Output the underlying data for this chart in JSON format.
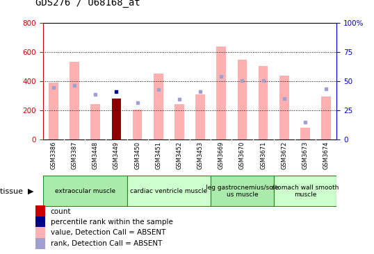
{
  "title": "GDS276 / U68168_at",
  "samples": [
    "GSM3386",
    "GSM3387",
    "GSM3448",
    "GSM3449",
    "GSM3450",
    "GSM3451",
    "GSM3452",
    "GSM3453",
    "GSM3669",
    "GSM3670",
    "GSM3671",
    "GSM3672",
    "GSM3673",
    "GSM3674"
  ],
  "bar_values": [
    390,
    535,
    245,
    280,
    207,
    455,
    244,
    308,
    638,
    548,
    503,
    437,
    80,
    298
  ],
  "rank_dots": [
    358,
    370,
    312,
    327,
    255,
    345,
    278,
    328,
    435,
    407,
    405,
    280,
    120,
    348
  ],
  "bar_colors": [
    "#ffb0b0",
    "#ffb0b0",
    "#ffb0b0",
    "#8b0000",
    "#ffb0b0",
    "#ffb0b0",
    "#ffb0b0",
    "#ffb0b0",
    "#ffb0b0",
    "#ffb0b0",
    "#ffb0b0",
    "#ffb0b0",
    "#ffb0b0",
    "#ffb0b0"
  ],
  "dot_colors": [
    "#a0a0d0",
    "#a0a0d0",
    "#a0a0d0",
    "#00008b",
    "#a0a0d0",
    "#a0a0d0",
    "#a0a0d0",
    "#a0a0d0",
    "#a0a0d0",
    "#a0a0d0",
    "#a0a0d0",
    "#a0a0d0",
    "#a0a0d0",
    "#a0a0d0"
  ],
  "ylim_left": [
    0,
    800
  ],
  "ylim_right": [
    0,
    100
  ],
  "yticks_left": [
    0,
    200,
    400,
    600,
    800
  ],
  "yticks_right": [
    0,
    25,
    50,
    75,
    100
  ],
  "tissue_groups": [
    {
      "label": "extraocular muscle",
      "start": 0,
      "end": 4,
      "color": "#aaeaaa"
    },
    {
      "label": "cardiac ventricle muscle",
      "start": 4,
      "end": 8,
      "color": "#ccffcc"
    },
    {
      "label": "leg gastrocnemius/sole\nus muscle",
      "start": 8,
      "end": 11,
      "color": "#aaeaaa"
    },
    {
      "label": "stomach wall smooth\nmuscle",
      "start": 11,
      "end": 14,
      "color": "#ccffcc"
    }
  ],
  "legend_items": [
    {
      "label": "count",
      "color": "#cc0000"
    },
    {
      "label": "percentile rank within the sample",
      "color": "#00008b"
    },
    {
      "label": "value, Detection Call = ABSENT",
      "color": "#ffb0b0"
    },
    {
      "label": "rank, Detection Call = ABSENT",
      "color": "#a0a0d0"
    }
  ],
  "title_color": "#000000",
  "left_axis_color": "#cc0000",
  "right_axis_color": "#0000cc",
  "background_color": "#ffffff",
  "plot_bg_color": "#ffffff",
  "xtick_bg_color": "#d8d8d8",
  "tissue_border_color": "#228822",
  "tissue_label": "tissue"
}
